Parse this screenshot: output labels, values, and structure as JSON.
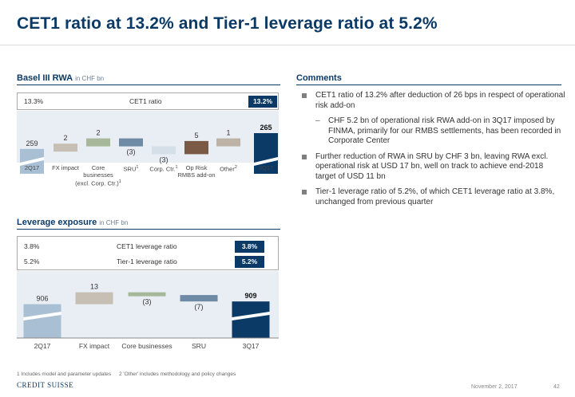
{
  "title": "CET1 ratio at 13.2% and Tier-1 leverage ratio at 5.2%",
  "rwa": {
    "heading": "Basel III RWA",
    "unit": "in CHF bn",
    "ratio_left": "13.3%",
    "ratio_label": "CET1 ratio",
    "ratio_right": "13.2%"
  },
  "leverage": {
    "heading": "Leverage exposure",
    "unit": "in CHF bn",
    "row1_left": "3.8%",
    "row1_label": "CET1 leverage ratio",
    "row1_right": "3.8%",
    "row2_left": "5.2%",
    "row2_label": "Tier-1 leverage ratio",
    "row2_right": "5.2%"
  },
  "comments": {
    "heading": "Comments",
    "items": [
      "CET1 ratio of 13.2% after deduction of 26 bps in respect of operational risk add-on",
      "CHF 5.2 bn of operational risk RWA add-on in 3Q17 imposed by FINMA, primarily for our RMBS settlements, has been recorded in Corporate Center",
      "Further reduction of RWA in SRU by CHF 3 bn, leaving RWA excl. operational risk at USD 17 bn, well on track to achieve end-2018 target of USD 11 bn",
      "Tier-1 leverage ratio of 5.2%, of which CET1 leverage ratio at 3.8%, unchanged from previous quarter"
    ]
  },
  "chart_data": [
    {
      "type": "bar",
      "subtype": "waterfall",
      "categories": [
        "2Q17",
        "FX impact",
        "Core businesses (excl. Corp. Ctr.)",
        "SRU",
        "Corp. Ctr.",
        "Op Risk RMBS add-on",
        "Other",
        "3Q17"
      ],
      "category_lines": [
        [
          "2Q17"
        ],
        [
          "FX impact"
        ],
        [
          "Core",
          "businesses",
          "(excl. Corp. Ctr.)"
        ],
        [
          "SRU"
        ],
        [
          "Corp. Ctr."
        ],
        [
          "Op Risk",
          "RMBS add-on"
        ],
        [
          "Other"
        ],
        [
          "3Q17"
        ]
      ],
      "category_sup": [
        "",
        "",
        "1",
        "1",
        "1",
        "",
        "2",
        ""
      ],
      "values": [
        259,
        2,
        2,
        -3,
        -3,
        5,
        1,
        265
      ],
      "labels": [
        "259",
        "2",
        "2",
        "(3)",
        "(3)",
        "5",
        "1",
        "265"
      ],
      "kinds": [
        "total",
        "delta",
        "delta",
        "delta",
        "delta",
        "delta",
        "delta",
        "total"
      ],
      "colors": [
        "#a9bfd3",
        "#c7bfb4",
        "#a7b89a",
        "#6f8aa5",
        "#d5dfe8",
        "#7a5a44",
        "#bdb2a6",
        "#0b3a66"
      ],
      "total_label_colors": [
        "#333333",
        "#333333",
        "#333333",
        "#333333",
        "#333333",
        "#333333",
        "#333333",
        "#111111"
      ],
      "title": "",
      "xlabel": "",
      "ylabel": ""
    },
    {
      "type": "bar",
      "subtype": "waterfall",
      "categories": [
        "2Q17",
        "FX impact",
        "Core businesses",
        "SRU",
        "3Q17"
      ],
      "category_lines": [
        [
          "2Q17"
        ],
        [
          "FX impact"
        ],
        [
          "Core businesses"
        ],
        [
          "SRU"
        ],
        [
          "3Q17"
        ]
      ],
      "category_sup": [
        "",
        "",
        "",
        "",
        ""
      ],
      "values": [
        906,
        13,
        -3,
        -7,
        909
      ],
      "labels": [
        "906",
        "13",
        "(3)",
        "(7)",
        "909"
      ],
      "kinds": [
        "total",
        "delta",
        "delta",
        "delta",
        "total"
      ],
      "colors": [
        "#a9bfd3",
        "#c7bfb4",
        "#a7b89a",
        "#6f8aa5",
        "#0b3a66"
      ],
      "title": "",
      "xlabel": "",
      "ylabel": ""
    }
  ],
  "footer": {
    "footnote1": "1 Includes model and parameter updates",
    "footnote2": "2 'Other' includes methodology and policy changes",
    "logo": "CREDIT SUISSE",
    "date": "November 2, 2017",
    "page": "42"
  }
}
